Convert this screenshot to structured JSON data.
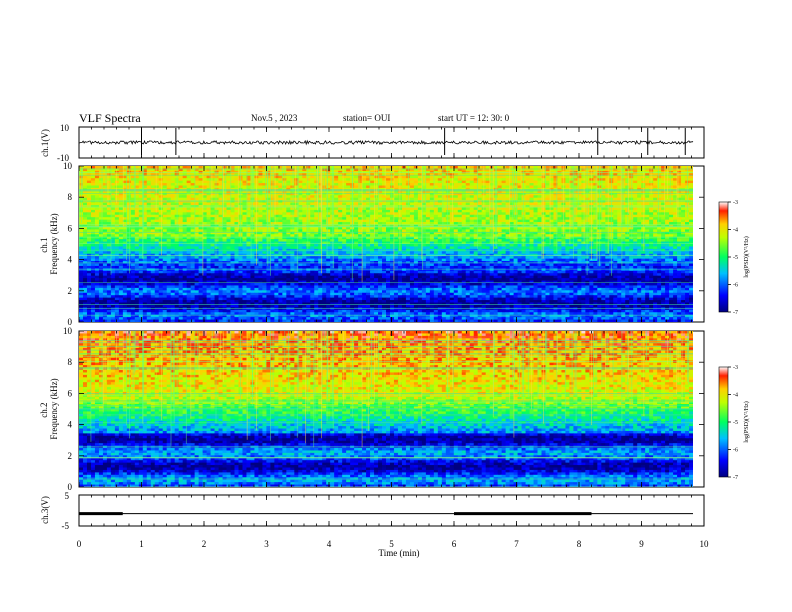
{
  "header": {
    "title": "VLF Spectra",
    "date": "Nov.5 , 2023",
    "station": "station= OUI",
    "start": "start UT = 12: 30: 0"
  },
  "chart_data": [
    {
      "type": "line",
      "ylabel": "ch.1(V)",
      "ylim": [
        -10,
        10
      ],
      "yticks": [
        "10",
        "-10"
      ],
      "baseline": 0,
      "spikes_min": [
        1.0,
        1.55,
        5.85,
        8.3,
        9.1,
        9.7
      ]
    },
    {
      "type": "heatmap",
      "ylabel": "ch.1\nFrequency (kHz)",
      "ylim": [
        0,
        10
      ],
      "yticks": [
        "0",
        "2",
        "4",
        "6",
        "8",
        "10"
      ],
      "colorbar": {
        "label": "log(PSD)(V²/Hz)",
        "range": [
          -7,
          -3
        ],
        "ticks": [
          "-3",
          "-4",
          "-5",
          "-6",
          "-7"
        ]
      }
    },
    {
      "type": "heatmap",
      "ylabel": "ch.2\nFrequency (kHz)",
      "ylim": [
        0,
        10
      ],
      "yticks": [
        "0",
        "2",
        "4",
        "6",
        "8",
        "10"
      ],
      "colorbar": {
        "label": "log(PSD)(V²/Hz)",
        "range": [
          -7,
          -3
        ],
        "ticks": [
          "-3",
          "-4",
          "-5",
          "-6",
          "-7"
        ]
      }
    },
    {
      "type": "line",
      "ylabel": "ch.3(V)",
      "ylim": [
        -5,
        5
      ],
      "yticks": [
        "5",
        "-5"
      ],
      "level": -1,
      "thick_segments_min": [
        [
          0,
          0.7
        ],
        [
          6.0,
          8.2
        ]
      ]
    }
  ],
  "xaxis": {
    "label": "Time (min)",
    "range": [
      0,
      10
    ],
    "ticks": [
      "0",
      "1",
      "2",
      "3",
      "4",
      "5",
      "6",
      "7",
      "8",
      "9",
      "10"
    ]
  }
}
